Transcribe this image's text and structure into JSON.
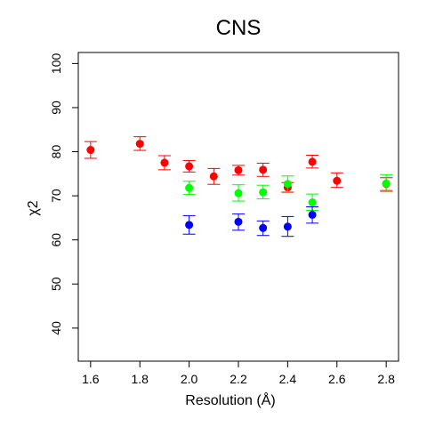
{
  "chart_data": {
    "type": "scatter",
    "title": "CNS",
    "xlabel": "Resolution",
    "xlabel_unit": "Å",
    "ylabel": "χ2",
    "xlim": [
      1.55,
      2.85
    ],
    "ylim": [
      32.5,
      102.5
    ],
    "x_ticks": [
      1.6,
      1.8,
      2.0,
      2.2,
      2.4,
      2.6,
      2.8
    ],
    "x_tick_labels": [
      "1.6",
      "1.8",
      "2.0",
      "2.2",
      "2.4",
      "2.6",
      "2.8"
    ],
    "y_ticks": [
      40,
      50,
      60,
      70,
      80,
      90,
      100
    ],
    "y_tick_labels": [
      "40",
      "50",
      "60",
      "70",
      "80",
      "90",
      "100"
    ],
    "grid": false,
    "error_bars": true,
    "series": [
      {
        "color": "#ff0000",
        "points": [
          {
            "x": 1.6,
            "y": 80.4,
            "lo": 78.5,
            "hi": 82.3
          },
          {
            "x": 1.8,
            "y": 81.8,
            "lo": 80.3,
            "hi": 83.4
          },
          {
            "x": 1.9,
            "y": 77.5,
            "lo": 75.9,
            "hi": 79.1
          },
          {
            "x": 2.0,
            "y": 76.7,
            "lo": 75.4,
            "hi": 78.0
          },
          {
            "x": 2.1,
            "y": 74.4,
            "lo": 72.6,
            "hi": 76.2
          },
          {
            "x": 2.2,
            "y": 75.8,
            "lo": 74.7,
            "hi": 76.9
          },
          {
            "x": 2.3,
            "y": 75.9,
            "lo": 74.4,
            "hi": 77.4
          },
          {
            "x": 2.4,
            "y": 71.9,
            "lo": 70.8,
            "hi": 73.0
          },
          {
            "x": 2.5,
            "y": 77.7,
            "lo": 76.3,
            "hi": 79.2
          },
          {
            "x": 2.6,
            "y": 73.4,
            "lo": 71.9,
            "hi": 75.2
          },
          {
            "x": 2.8,
            "y": 72.7,
            "lo": 71.2,
            "hi": 74.1
          }
        ]
      },
      {
        "color": "#00ff00",
        "points": [
          {
            "x": 2.0,
            "y": 71.8,
            "lo": 70.3,
            "hi": 73.3
          },
          {
            "x": 2.2,
            "y": 70.6,
            "lo": 68.8,
            "hi": 72.5
          },
          {
            "x": 2.3,
            "y": 70.8,
            "lo": 69.3,
            "hi": 72.4
          },
          {
            "x": 2.4,
            "y": 72.7,
            "lo": 70.9,
            "hi": 74.5
          },
          {
            "x": 2.5,
            "y": 68.5,
            "lo": 66.7,
            "hi": 70.4
          },
          {
            "x": 2.8,
            "y": 72.8,
            "lo": 70.9,
            "hi": 74.8
          }
        ]
      },
      {
        "color": "#0000ff",
        "points": [
          {
            "x": 2.0,
            "y": 63.4,
            "lo": 61.3,
            "hi": 65.5
          },
          {
            "x": 2.2,
            "y": 64.1,
            "lo": 62.2,
            "hi": 65.9
          },
          {
            "x": 2.3,
            "y": 62.7,
            "lo": 61.0,
            "hi": 64.3
          },
          {
            "x": 2.4,
            "y": 63.0,
            "lo": 60.8,
            "hi": 65.3
          },
          {
            "x": 2.5,
            "y": 65.7,
            "lo": 63.8,
            "hi": 67.5
          }
        ]
      }
    ]
  }
}
